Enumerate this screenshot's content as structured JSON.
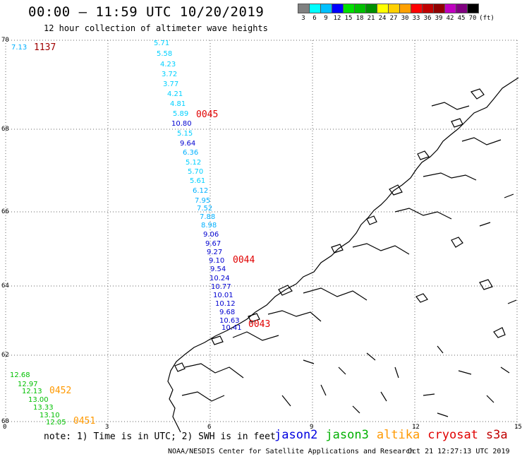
{
  "title": "00:00 – 11:59 UTC 10/20/2019",
  "subtitle": "12 hour collection of altimeter wave heights",
  "colorbar": {
    "colors": [
      "#808080",
      "#00ffff",
      "#00c0ff",
      "#0000ff",
      "#00e000",
      "#00c000",
      "#009000",
      "#ffff00",
      "#ffd000",
      "#ffa000",
      "#ff0000",
      "#c00000",
      "#900000",
      "#c000c0",
      "#800080",
      "#000000"
    ],
    "labels": [
      "3",
      "6",
      "9",
      "12",
      "15",
      "18",
      "21",
      "24",
      "27",
      "30",
      "33",
      "36",
      "39",
      "42",
      "45",
      "70",
      "(ft)"
    ]
  },
  "axes": {
    "lat_labels": [
      "70",
      "68",
      "66",
      "64",
      "62",
      "60"
    ],
    "lon_labels": [
      "0",
      "3",
      "6",
      "9",
      "12",
      "15"
    ]
  },
  "observations": [
    {
      "text": "7.13",
      "color": "#00b0ff"
    },
    {
      "text": "5.71",
      "color": "#00d0ff"
    },
    {
      "text": "5.58",
      "color": "#00d0ff"
    },
    {
      "text": "4.23",
      "color": "#00d0ff"
    },
    {
      "text": "3.72",
      "color": "#00d0ff"
    },
    {
      "text": "3.77",
      "color": "#00d0ff"
    },
    {
      "text": "4.21",
      "color": "#00d0ff"
    },
    {
      "text": "4.81",
      "color": "#00d0ff"
    },
    {
      "text": "5.89",
      "color": "#00d0ff"
    },
    {
      "text": "10.80",
      "color": "#0000d0"
    },
    {
      "text": "5.15",
      "color": "#00d0ff"
    },
    {
      "text": "9.64",
      "color": "#0000d0"
    },
    {
      "text": "6.36",
      "color": "#00b0ff"
    },
    {
      "text": "5.12",
      "color": "#00d0ff"
    },
    {
      "text": "5.70",
      "color": "#00d0ff"
    },
    {
      "text": "5.61",
      "color": "#00d0ff"
    },
    {
      "text": "6.12",
      "color": "#00b0ff"
    },
    {
      "text": "7.95",
      "color": "#00b0ff"
    },
    {
      "text": "7.52",
      "color": "#00b0ff"
    },
    {
      "text": "7.88",
      "color": "#00b0ff"
    },
    {
      "text": "8.98",
      "color": "#00b0ff"
    },
    {
      "text": "9.06",
      "color": "#0000d0"
    },
    {
      "text": "9.67",
      "color": "#0000d0"
    },
    {
      "text": "9.27",
      "color": "#0000d0"
    },
    {
      "text": "9.10",
      "color": "#0000d0"
    },
    {
      "text": "9.54",
      "color": "#0000d0"
    },
    {
      "text": "10.24",
      "color": "#0000d0"
    },
    {
      "text": "10.77",
      "color": "#0000d0"
    },
    {
      "text": "10.01",
      "color": "#0000d0"
    },
    {
      "text": "10.12",
      "color": "#0000d0"
    },
    {
      "text": "9.68",
      "color": "#0000d0"
    },
    {
      "text": "10.63",
      "color": "#0000d0"
    },
    {
      "text": "10.41",
      "color": "#0000d0"
    },
    {
      "text": "12.68",
      "color": "#00c000"
    },
    {
      "text": "12.97",
      "color": "#00c000"
    },
    {
      "text": "12.13",
      "color": "#00c000"
    },
    {
      "text": "13.00",
      "color": "#00c000"
    },
    {
      "text": "13.33",
      "color": "#00c000"
    },
    {
      "text": "13.10",
      "color": "#00c000"
    },
    {
      "text": "12.05",
      "color": "#00c000"
    }
  ],
  "pass_times": [
    {
      "text": "1137",
      "color": "#a00000"
    },
    {
      "text": "0045",
      "color": "#e00000"
    },
    {
      "text": "0044",
      "color": "#e00000"
    },
    {
      "text": "0043",
      "color": "#e00000"
    },
    {
      "text": "0452",
      "color": "#ff9900"
    },
    {
      "text": "0451",
      "color": "#ff9900"
    }
  ],
  "note": "note: 1) Time is in UTC; 2) SWH is in feet",
  "legend": [
    {
      "text": "jason2",
      "color": "#0000e0"
    },
    {
      "text": "jason3",
      "color": "#00b000"
    },
    {
      "text": "altika",
      "color": "#ff9900"
    },
    {
      "text": "cryosat",
      "color": "#e00000"
    },
    {
      "text": "s3a",
      "color": "#c00000"
    }
  ],
  "credit": "NOAA/NESDIS Center for Satellite Applications and Research",
  "timestamp": "Oct 21 12:27:13 UTC 2019"
}
